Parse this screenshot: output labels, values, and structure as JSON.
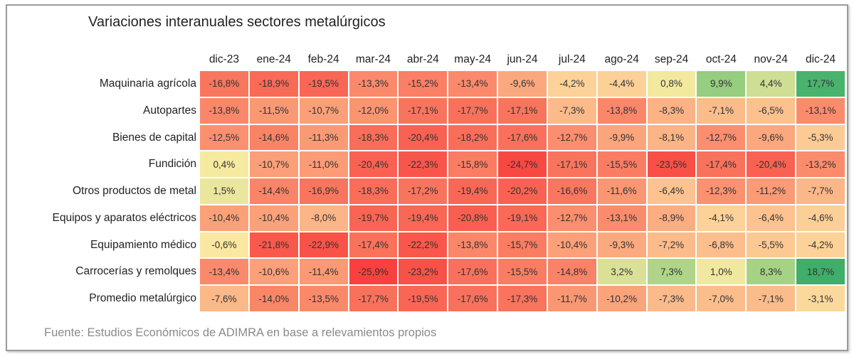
{
  "chart_data": {
    "type": "heatmap",
    "title": "Variaciones interanuales sectores metalúrgicos",
    "columns": [
      "dic-23",
      "ene-24",
      "feb-24",
      "mar-24",
      "abr-24",
      "may-24",
      "jun-24",
      "jul-24",
      "ago-24",
      "sep-24",
      "oct-24",
      "nov-24",
      "dic-24"
    ],
    "rows": [
      {
        "label": "Maquinaria agrícola",
        "values": [
          -16.8,
          -18.9,
          -19.5,
          -13.3,
          -15.2,
          -13.4,
          -9.6,
          -4.2,
          -4.4,
          0.8,
          9.9,
          4.4,
          17.7
        ]
      },
      {
        "label": "Autopartes",
        "values": [
          -13.8,
          -11.5,
          -10.7,
          -12.0,
          -17.1,
          -17.7,
          -17.1,
          -7.3,
          -13.8,
          -8.3,
          -7.1,
          -6.5,
          -13.1
        ]
      },
      {
        "label": "Bienes de capital",
        "values": [
          -12.5,
          -14.6,
          -11.3,
          -18.3,
          -20.4,
          -18.2,
          -17.6,
          -12.7,
          -9.9,
          -8.1,
          -12.7,
          -9.6,
          -5.3
        ]
      },
      {
        "label": "Fundición",
        "values": [
          0.4,
          -10.7,
          -11.0,
          -20.4,
          -22.3,
          -15.8,
          -24.7,
          -17.1,
          -15.5,
          -23.5,
          -17.4,
          -20.4,
          -13.2
        ]
      },
      {
        "label": "Otros productos de metal",
        "values": [
          1.5,
          -14.4,
          -16.9,
          -18.3,
          -17.2,
          -19.4,
          -20.2,
          -16.6,
          -11.6,
          -6.4,
          -12.3,
          -11.2,
          -7.7
        ]
      },
      {
        "label": "Equipos y aparatos eléctricos",
        "values": [
          -10.4,
          -10.4,
          -8.0,
          -19.7,
          -19.4,
          -20.8,
          -19.1,
          -12.7,
          -13.1,
          -8.9,
          -4.1,
          -6.4,
          -4.6
        ]
      },
      {
        "label": "Equipamiento médico",
        "values": [
          -0.6,
          -21.8,
          -22.9,
          -17.4,
          -22.2,
          -13.8,
          -15.7,
          -10.4,
          -9.3,
          -7.2,
          -6.8,
          -5.5,
          -4.2
        ]
      },
      {
        "label": "Carrocerías y remolques",
        "values": [
          -13.4,
          -10.6,
          -11.4,
          -25.9,
          -23.2,
          -17.6,
          -15.5,
          -14.8,
          3.2,
          7.3,
          1.0,
          8.3,
          18.7
        ]
      },
      {
        "label": "Promedio metalúrgico",
        "values": [
          -7.6,
          -14.0,
          -13.5,
          -17.7,
          -19.5,
          -17.6,
          -17.3,
          -11.7,
          -10.2,
          -7.3,
          -7.0,
          -7.1,
          -3.1
        ]
      }
    ],
    "value_format": "percent, comma decimal",
    "color_scale": {
      "min": -25.9,
      "mid": 0,
      "max": 18.7,
      "min_color": "#f8413e",
      "mid_color": "#faeba2",
      "max_color": "#3fae6b"
    },
    "source": "Fuente: Estudios Económicos de ADIMRA en base a relevamientos propios"
  }
}
